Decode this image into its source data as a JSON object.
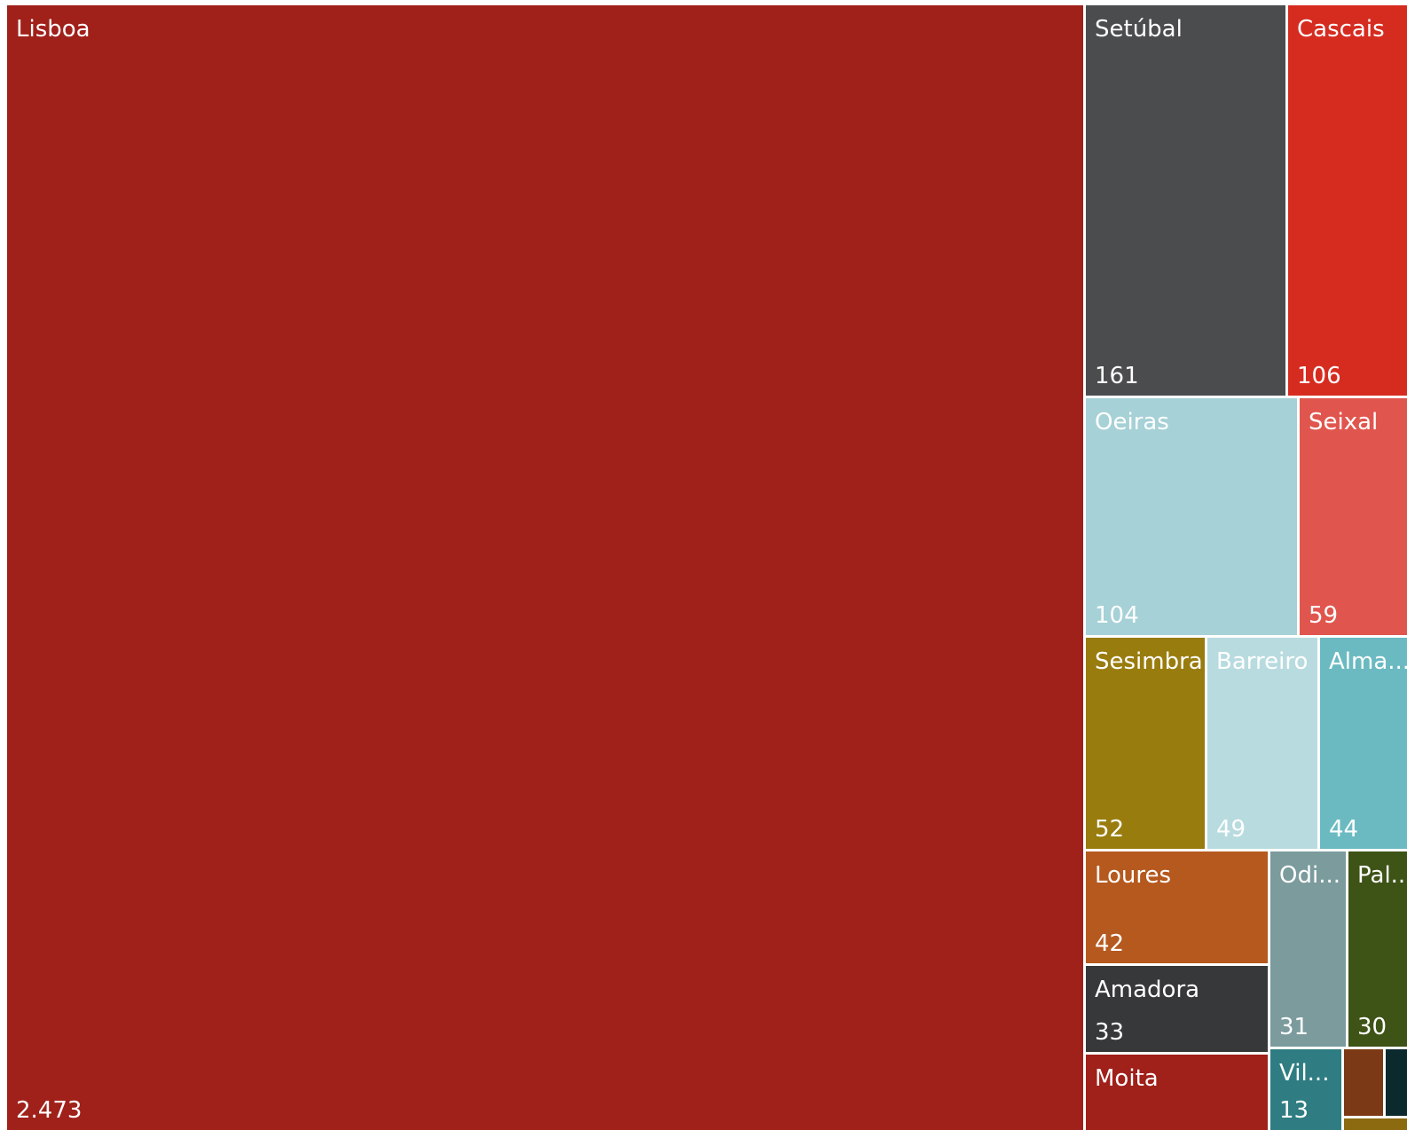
{
  "chart_data": {
    "type": "treemap",
    "items": [
      {
        "name": "Lisboa",
        "label": "Lisboa",
        "value": 2473,
        "value_label": "2.473",
        "color": "#a0201a"
      },
      {
        "name": "Setúbal",
        "label": "Setúbal",
        "value": 161,
        "value_label": "161",
        "color": "#4b4c4e"
      },
      {
        "name": "Cascais",
        "label": "Cascais",
        "value": 106,
        "value_label": "106",
        "color": "#d62c20"
      },
      {
        "name": "Oeiras",
        "label": "Oeiras",
        "value": 104,
        "value_label": "104",
        "color": "#a6d1d6"
      },
      {
        "name": "Seixal",
        "label": "Seixal",
        "value": 59,
        "value_label": "59",
        "color": "#e0564e"
      },
      {
        "name": "Sesimbra",
        "label": "Sesimbra",
        "value": 52,
        "value_label": "52",
        "color": "#997c0e"
      },
      {
        "name": "Barreiro",
        "label": "Barreiro",
        "value": 49,
        "value_label": "49",
        "color": "#b8dbdf"
      },
      {
        "name": "Alma...",
        "label": "Alma...",
        "value": 44,
        "value_label": "44",
        "color": "#6bbac1"
      },
      {
        "name": "Loures",
        "label": "Loures",
        "value": 42,
        "value_label": "42",
        "color": "#b5591e"
      },
      {
        "name": "Amadora",
        "label": "Amadora",
        "value": 33,
        "value_label": "33",
        "color": "#37383a"
      },
      {
        "name": "Odi...",
        "label": "Odi...",
        "value": 31,
        "value_label": "31",
        "color": "#7b9b9d"
      },
      {
        "name": "Pal...",
        "label": "Pal...",
        "value": 30,
        "value_label": "30",
        "color": "#3e5316"
      },
      {
        "name": "Moita",
        "label": "Moita",
        "value": null,
        "value_label": "",
        "color": "#a0201a"
      },
      {
        "name": "Vil...",
        "label": "Vil...",
        "value": 13,
        "value_label": "13",
        "color": "#2f7d82"
      },
      {
        "name": "",
        "label": "",
        "value": null,
        "value_label": "",
        "color": "#7b3a15"
      },
      {
        "name": "",
        "label": "",
        "value": null,
        "value_label": "",
        "color": "#0b2a2e"
      },
      {
        "name": "",
        "label": "",
        "value": null,
        "value_label": "",
        "color": "#8c6a10"
      }
    ]
  }
}
